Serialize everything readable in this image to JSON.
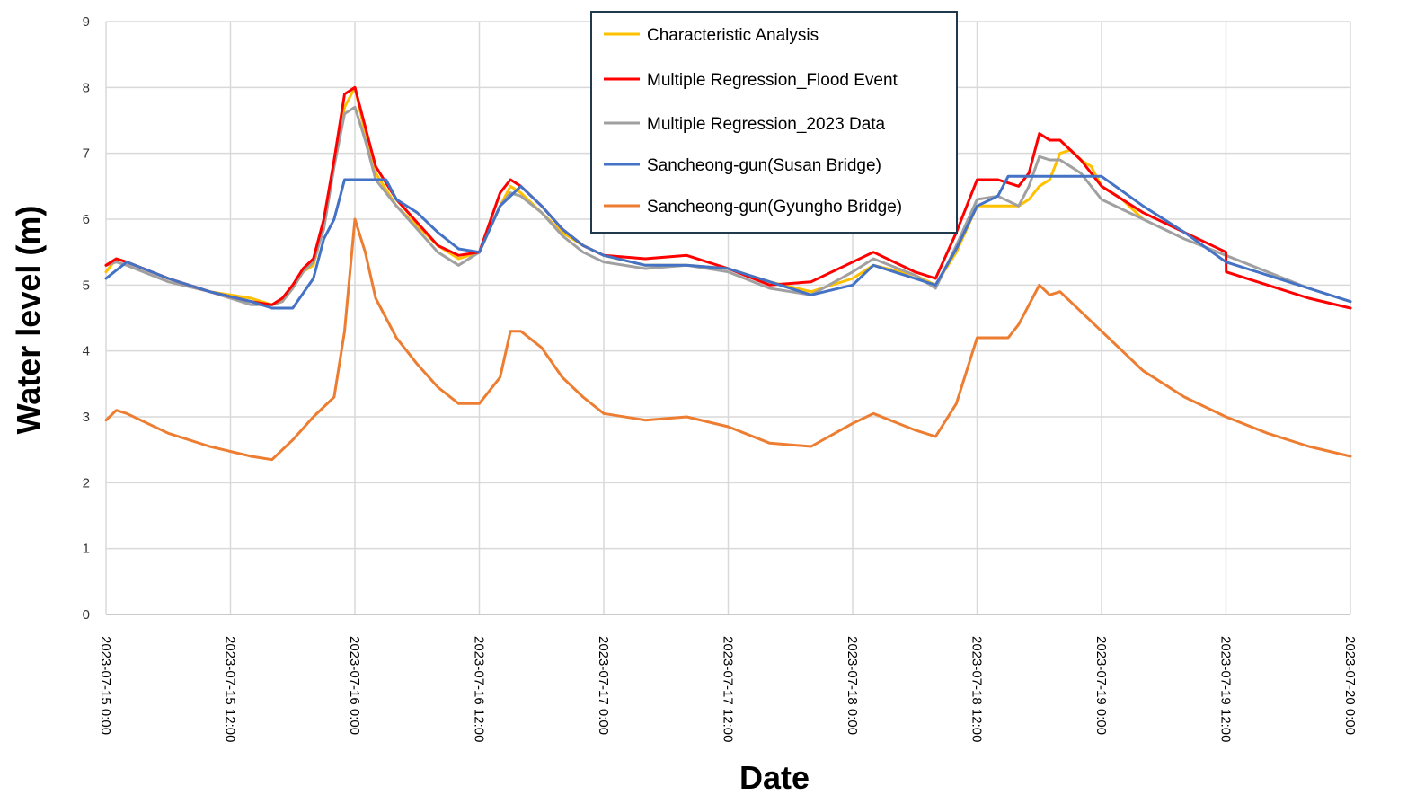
{
  "chart_data": {
    "type": "line",
    "title": "",
    "xlabel": "Date",
    "ylabel": "Water level (m)",
    "ylim": [
      0,
      9
    ],
    "yticks": [
      0,
      1,
      2,
      3,
      4,
      5,
      6,
      7,
      8,
      9
    ],
    "xlim": [
      "2023-07-15 0:00",
      "2023-07-20 0:00"
    ],
    "xticks": [
      "2023-07-15 0:00",
      "2023-07-15 12:00",
      "2023-07-16 0:00",
      "2023-07-16 12:00",
      "2023-07-17 0:00",
      "2023-07-17 12:00",
      "2023-07-18 0:00",
      "2023-07-18 12:00",
      "2023-07-19 0:00",
      "2023-07-19 12:00",
      "2023-07-20 0:00"
    ],
    "xtick_labels": [
      "2023-07-15 0:00",
      "2023-07-15 12:00",
      "2023-07-16 0:00",
      "2023-07-16 12:00",
      "2023-07-17 0:00",
      "2023-07-17 12:00",
      "2023-07-18 0:00",
      "2023-07-18 12:00",
      "2023-07-19 0:00",
      "2023-07-19 12:00",
      "2023-07-20 0:00"
    ],
    "grid": true,
    "legend_position": "top-center",
    "series": [
      {
        "name": "Characteristic Analysis",
        "color": "#FFC000",
        "x": [
          "2023-07-15 0:00",
          "2023-07-15 1:00",
          "2023-07-15 2:00",
          "2023-07-15 6:00",
          "2023-07-15 10:00",
          "2023-07-15 14:00",
          "2023-07-15 16:00",
          "2023-07-15 17:00",
          "2023-07-15 18:00",
          "2023-07-15 19:00",
          "2023-07-15 20:00",
          "2023-07-15 21:00",
          "2023-07-15 22:00",
          "2023-07-15 23:00",
          "2023-07-16 0:00",
          "2023-07-16 1:00",
          "2023-07-16 2:00",
          "2023-07-16 4:00",
          "2023-07-16 6:00",
          "2023-07-16 8:00",
          "2023-07-16 10:00",
          "2023-07-16 12:00",
          "2023-07-16 14:00",
          "2023-07-16 15:00",
          "2023-07-16 16:00",
          "2023-07-16 18:00",
          "2023-07-16 20:00",
          "2023-07-16 22:00",
          "2023-07-17 0:00",
          "2023-07-17 4:00",
          "2023-07-17 8:00",
          "2023-07-17 12:00",
          "2023-07-17 16:00",
          "2023-07-17 20:00",
          "2023-07-18 0:00",
          "2023-07-18 2:00",
          "2023-07-18 6:00",
          "2023-07-18 8:00",
          "2023-07-18 10:00",
          "2023-07-18 12:00",
          "2023-07-18 14:00",
          "2023-07-18 16:00",
          "2023-07-18 17:00",
          "2023-07-18 18:00",
          "2023-07-18 19:00",
          "2023-07-18 20:00",
          "2023-07-18 21:00",
          "2023-07-18 22:00",
          "2023-07-18 23:00",
          "2023-07-19 0:00",
          "2023-07-19 2:00",
          "2023-07-19 4:00"
        ],
        "values": [
          5.2,
          5.4,
          5.35,
          5.1,
          4.9,
          4.8,
          4.7,
          4.75,
          4.95,
          5.2,
          5.3,
          5.9,
          6.8,
          7.7,
          8.0,
          7.3,
          6.7,
          6.2,
          5.9,
          5.6,
          5.4,
          5.5,
          6.2,
          6.5,
          6.4,
          6.1,
          5.8,
          5.6,
          5.45,
          5.3,
          5.3,
          5.25,
          5.05,
          4.9,
          5.1,
          5.3,
          5.15,
          5.0,
          5.5,
          6.2,
          6.2,
          6.2,
          6.3,
          6.5,
          6.6,
          7.0,
          7.05,
          6.9,
          6.8,
          6.5,
          6.3,
          6.0
        ]
      },
      {
        "name": "Multiple Regression_Flood Event",
        "color": "#FF0000",
        "x": [
          "2023-07-15 0:00",
          "2023-07-15 1:00",
          "2023-07-15 2:00",
          "2023-07-15 6:00",
          "2023-07-15 10:00",
          "2023-07-15 14:00",
          "2023-07-15 16:00",
          "2023-07-15 17:00",
          "2023-07-15 18:00",
          "2023-07-15 19:00",
          "2023-07-15 20:00",
          "2023-07-15 21:00",
          "2023-07-15 22:00",
          "2023-07-15 23:00",
          "2023-07-16 0:00",
          "2023-07-16 1:00",
          "2023-07-16 2:00",
          "2023-07-16 4:00",
          "2023-07-16 6:00",
          "2023-07-16 8:00",
          "2023-07-16 10:00",
          "2023-07-16 12:00",
          "2023-07-16 14:00",
          "2023-07-16 15:00",
          "2023-07-16 16:00",
          "2023-07-16 18:00",
          "2023-07-16 20:00",
          "2023-07-16 22:00",
          "2023-07-17 0:00",
          "2023-07-17 4:00",
          "2023-07-17 8:00",
          "2023-07-17 12:00",
          "2023-07-17 16:00",
          "2023-07-17 20:00",
          "2023-07-18 0:00",
          "2023-07-18 2:00",
          "2023-07-18 6:00",
          "2023-07-18 8:00",
          "2023-07-18 10:00",
          "2023-07-18 12:00",
          "2023-07-18 14:00",
          "2023-07-18 16:00",
          "2023-07-18 17:00",
          "2023-07-18 18:00",
          "2023-07-18 19:00",
          "2023-07-18 20:00",
          "2023-07-18 21:00",
          "2023-07-18 22:00",
          "2023-07-19 0:00",
          "2023-07-19 4:00",
          "2023-07-19 8:00",
          "2023-07-19 12:00",
          "2023-07-19 12:01",
          "2023-07-19 16:00",
          "2023-07-19 20:00",
          "2023-07-20 0:00"
        ],
        "values": [
          5.3,
          5.4,
          5.35,
          5.1,
          4.9,
          4.75,
          4.7,
          4.8,
          5.0,
          5.25,
          5.4,
          6.0,
          6.9,
          7.9,
          8.0,
          7.4,
          6.8,
          6.3,
          5.95,
          5.6,
          5.45,
          5.5,
          6.4,
          6.6,
          6.5,
          6.2,
          5.85,
          5.6,
          5.45,
          5.4,
          5.45,
          5.25,
          5.0,
          5.05,
          5.35,
          5.5,
          5.2,
          5.1,
          5.8,
          6.6,
          6.6,
          6.5,
          6.7,
          7.3,
          7.2,
          7.2,
          7.05,
          6.9,
          6.5,
          6.1,
          5.8,
          5.5,
          5.2,
          5.0,
          4.8,
          4.65
        ]
      },
      {
        "name": "Multiple Regression_2023 Data",
        "color": "#A0A0A0",
        "x": [
          "2023-07-15 0:00",
          "2023-07-15 1:00",
          "2023-07-15 2:00",
          "2023-07-15 6:00",
          "2023-07-15 10:00",
          "2023-07-15 14:00",
          "2023-07-15 16:00",
          "2023-07-15 17:00",
          "2023-07-15 18:00",
          "2023-07-15 19:00",
          "2023-07-15 20:00",
          "2023-07-15 21:00",
          "2023-07-15 22:00",
          "2023-07-15 23:00",
          "2023-07-16 0:00",
          "2023-07-16 1:00",
          "2023-07-16 2:00",
          "2023-07-16 4:00",
          "2023-07-16 6:00",
          "2023-07-16 8:00",
          "2023-07-16 10:00",
          "2023-07-16 12:00",
          "2023-07-16 14:00",
          "2023-07-16 15:00",
          "2023-07-16 16:00",
          "2023-07-16 18:00",
          "2023-07-16 20:00",
          "2023-07-16 22:00",
          "2023-07-17 0:00",
          "2023-07-17 4:00",
          "2023-07-17 8:00",
          "2023-07-17 12:00",
          "2023-07-17 16:00",
          "2023-07-17 20:00",
          "2023-07-18 0:00",
          "2023-07-18 2:00",
          "2023-07-18 6:00",
          "2023-07-18 8:00",
          "2023-07-18 10:00",
          "2023-07-18 12:00",
          "2023-07-18 14:00",
          "2023-07-18 16:00",
          "2023-07-18 17:00",
          "2023-07-18 18:00",
          "2023-07-18 19:00",
          "2023-07-18 20:00",
          "2023-07-18 21:00",
          "2023-07-18 22:00",
          "2023-07-19 0:00",
          "2023-07-19 4:00",
          "2023-07-19 8:00",
          "2023-07-19 12:00",
          "2023-07-19 16:00",
          "2023-07-19 20:00",
          "2023-07-20 0:00"
        ],
        "values": [
          5.3,
          5.35,
          5.3,
          5.05,
          4.9,
          4.7,
          4.7,
          4.75,
          4.95,
          5.2,
          5.35,
          5.85,
          6.8,
          7.6,
          7.7,
          7.2,
          6.6,
          6.2,
          5.85,
          5.5,
          5.3,
          5.5,
          6.2,
          6.4,
          6.35,
          6.1,
          5.75,
          5.5,
          5.35,
          5.25,
          5.3,
          5.2,
          4.95,
          4.85,
          5.2,
          5.4,
          5.15,
          4.95,
          5.6,
          6.3,
          6.35,
          6.2,
          6.5,
          6.95,
          6.9,
          6.9,
          6.8,
          6.7,
          6.3,
          6.0,
          5.7,
          5.45,
          5.2,
          4.95,
          4.75
        ]
      },
      {
        "name": "Sancheong-gun(Susan Bridge)",
        "color": "#4472C4",
        "x": [
          "2023-07-15 0:00",
          "2023-07-15 2:00",
          "2023-07-15 6:00",
          "2023-07-15 10:00",
          "2023-07-15 14:00",
          "2023-07-15 16:00",
          "2023-07-15 18:00",
          "2023-07-15 20:00",
          "2023-07-15 21:00",
          "2023-07-15 22:00",
          "2023-07-15 23:00",
          "2023-07-16 3:00",
          "2023-07-16 4:00",
          "2023-07-16 6:00",
          "2023-07-16 8:00",
          "2023-07-16 10:00",
          "2023-07-16 12:00",
          "2023-07-16 14:00",
          "2023-07-16 16:00",
          "2023-07-16 18:00",
          "2023-07-16 20:00",
          "2023-07-16 22:00",
          "2023-07-17 0:00",
          "2023-07-17 4:00",
          "2023-07-17 8:00",
          "2023-07-17 12:00",
          "2023-07-17 16:00",
          "2023-07-17 20:00",
          "2023-07-18 0:00",
          "2023-07-18 2:00",
          "2023-07-18 6:00",
          "2023-07-18 8:00",
          "2023-07-18 10:00",
          "2023-07-18 12:00",
          "2023-07-18 14:00",
          "2023-07-18 15:00",
          "2023-07-19 0:00",
          "2023-07-19 4:00",
          "2023-07-19 8:00",
          "2023-07-19 12:00",
          "2023-07-19 16:00",
          "2023-07-19 20:00",
          "2023-07-20 0:00"
        ],
        "values": [
          5.1,
          5.35,
          5.1,
          4.9,
          4.75,
          4.65,
          4.65,
          5.1,
          5.7,
          6.0,
          6.6,
          6.6,
          6.3,
          6.1,
          5.8,
          5.55,
          5.5,
          6.2,
          6.5,
          6.2,
          5.85,
          5.6,
          5.45,
          5.3,
          5.3,
          5.25,
          5.05,
          4.85,
          5.0,
          5.3,
          5.1,
          5.0,
          5.55,
          6.2,
          6.35,
          6.65,
          6.65,
          6.2,
          5.8,
          5.35,
          5.15,
          4.95,
          4.75
        ]
      },
      {
        "name": "Sancheong-gun(Gyungho Bridge)",
        "color": "#ED7D31",
        "x": [
          "2023-07-15 0:00",
          "2023-07-15 1:00",
          "2023-07-15 2:00",
          "2023-07-15 6:00",
          "2023-07-15 10:00",
          "2023-07-15 14:00",
          "2023-07-15 16:00",
          "2023-07-15 17:00",
          "2023-07-15 18:00",
          "2023-07-15 20:00",
          "2023-07-15 22:00",
          "2023-07-15 23:00",
          "2023-07-16 0:00",
          "2023-07-16 1:00",
          "2023-07-16 2:00",
          "2023-07-16 4:00",
          "2023-07-16 6:00",
          "2023-07-16 8:00",
          "2023-07-16 10:00",
          "2023-07-16 12:00",
          "2023-07-16 14:00",
          "2023-07-16 15:00",
          "2023-07-16 16:00",
          "2023-07-16 18:00",
          "2023-07-16 20:00",
          "2023-07-16 22:00",
          "2023-07-17 0:00",
          "2023-07-17 4:00",
          "2023-07-17 8:00",
          "2023-07-17 12:00",
          "2023-07-17 16:00",
          "2023-07-17 20:00",
          "2023-07-18 0:00",
          "2023-07-18 2:00",
          "2023-07-18 6:00",
          "2023-07-18 8:00",
          "2023-07-18 10:00",
          "2023-07-18 12:00",
          "2023-07-18 14:00",
          "2023-07-18 15:00",
          "2023-07-18 16:00",
          "2023-07-18 18:00",
          "2023-07-18 19:00",
          "2023-07-18 20:00",
          "2023-07-18 22:00",
          "2023-07-19 0:00",
          "2023-07-19 4:00",
          "2023-07-19 8:00",
          "2023-07-19 12:00",
          "2023-07-19 16:00",
          "2023-07-19 20:00",
          "2023-07-20 0:00"
        ],
        "values": [
          2.95,
          3.1,
          3.05,
          2.75,
          2.55,
          2.4,
          2.35,
          2.5,
          2.65,
          3.0,
          3.3,
          4.3,
          6.0,
          5.5,
          4.8,
          4.2,
          3.8,
          3.45,
          3.2,
          3.2,
          3.6,
          4.3,
          4.3,
          4.05,
          3.6,
          3.3,
          3.05,
          2.95,
          3.0,
          2.85,
          2.6,
          2.55,
          2.9,
          3.05,
          2.8,
          2.7,
          3.2,
          4.2,
          4.2,
          4.2,
          4.4,
          5.0,
          4.85,
          4.9,
          4.6,
          4.3,
          3.7,
          3.3,
          3.0,
          2.75,
          2.55,
          2.4
        ]
      }
    ]
  }
}
